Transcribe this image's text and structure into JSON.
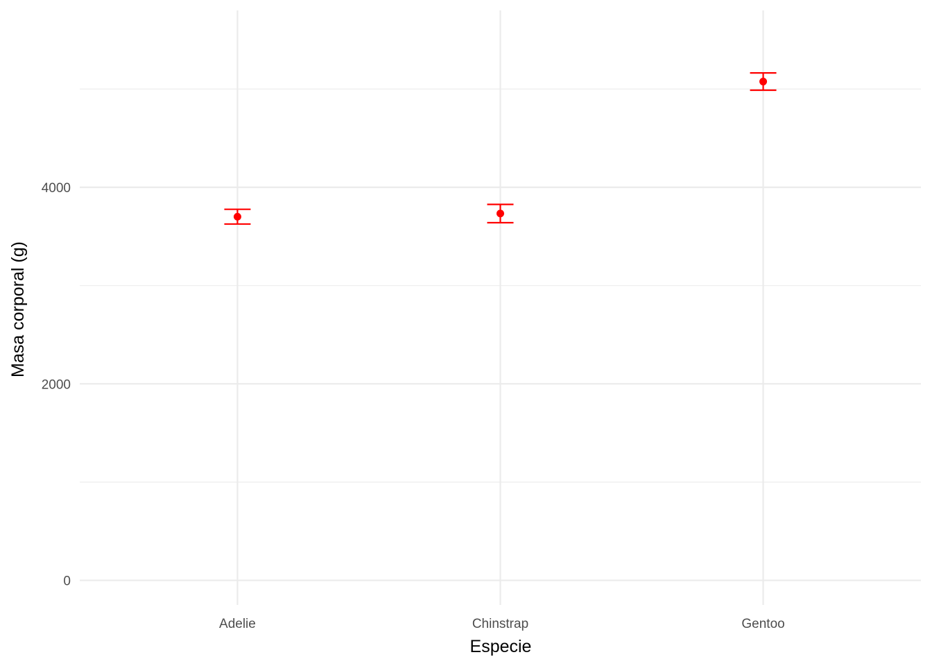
{
  "chart_data": {
    "type": "scatter",
    "title": "",
    "xlabel": "Especie",
    "ylabel": "Masa corporal (g)",
    "categories": [
      "Adelie",
      "Chinstrap",
      "Gentoo"
    ],
    "series": [
      {
        "values": [
          3701,
          3733,
          5076
        ],
        "error_low": [
          3626,
          3640,
          4988
        ],
        "error_high": [
          3776,
          3826,
          5164
        ]
      }
    ],
    "yticks": [
      0,
      2000,
      4000
    ],
    "ylim": [
      -250,
      5800
    ],
    "grid": true,
    "legend": "none",
    "colors": {
      "points": "#ff0000",
      "grid": "#ebebeb",
      "tick_text": "#4d4d4d"
    }
  }
}
